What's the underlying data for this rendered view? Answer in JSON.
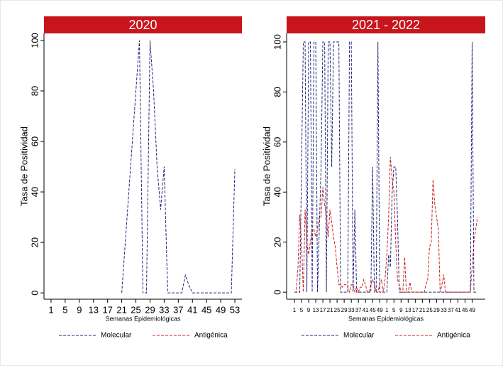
{
  "chart_data": [
    {
      "type": "line",
      "title": "2020",
      "xlabel": "Semanas Epidemiológicas",
      "ylabel": "Tasa de Positividad",
      "x": [
        21,
        22,
        23,
        24,
        25,
        26,
        27,
        28,
        29,
        30,
        31,
        32,
        33,
        34,
        35,
        36,
        37,
        38,
        39,
        40,
        41,
        42,
        43,
        44,
        45,
        46,
        47,
        48,
        49,
        50,
        51,
        52,
        53
      ],
      "xlim": [
        -1,
        55
      ],
      "xticks": [
        1,
        5,
        9,
        13,
        17,
        21,
        25,
        29,
        33,
        37,
        41,
        45,
        49,
        53
      ],
      "ylim": [
        -2.5,
        102.8
      ],
      "yticks": [
        0,
        20,
        40,
        60,
        80,
        100
      ],
      "legend": "bottom",
      "series": [
        {
          "name": "Molecular",
          "color": "#26267f",
          "values": [
            0,
            20,
            40,
            60,
            80,
            100,
            0,
            0,
            100,
            80,
            50,
            33,
            50,
            0,
            0,
            0,
            0,
            0,
            7,
            3,
            0,
            0,
            0,
            0,
            0,
            0,
            0,
            0,
            0,
            0,
            0,
            0,
            49
          ]
        },
        {
          "name": "Antigénica",
          "color": "#cc2222",
          "values": [
            null,
            null,
            null,
            null,
            null,
            null,
            null,
            null,
            null,
            null,
            null,
            null,
            null,
            null,
            null,
            null,
            null,
            null,
            null,
            null,
            null,
            null,
            null,
            null,
            null,
            null,
            null,
            null,
            null,
            null,
            null,
            null,
            null
          ]
        }
      ]
    },
    {
      "type": "line",
      "title": "2021 - 2022",
      "xlabel": "Semanas Epidemiológicas",
      "ylabel": "Tasa de Positividad",
      "categories": [
        "1",
        null,
        null,
        null,
        "5",
        null,
        null,
        null,
        "9",
        null,
        null,
        null,
        "13",
        null,
        null,
        null,
        "17",
        null,
        null,
        null,
        "21",
        null,
        null,
        null,
        "25",
        null,
        null,
        null,
        "29",
        null,
        null,
        null,
        "33",
        null,
        null,
        null,
        "37",
        null,
        null,
        null,
        "41",
        null,
        null,
        null,
        "45",
        null,
        null,
        null,
        "49",
        null,
        null,
        null,
        "1",
        null,
        null,
        null,
        "5",
        null,
        null,
        null,
        "9",
        null,
        null,
        null,
        "13",
        null,
        null,
        null,
        "17",
        null,
        null,
        null,
        "21",
        null,
        null,
        null,
        "25",
        null,
        null,
        null,
        "29",
        null,
        null,
        null,
        "33",
        null,
        null,
        null,
        "37",
        null,
        null,
        null,
        "41",
        null,
        null,
        null,
        "45",
        null,
        null,
        null,
        "49",
        null,
        null,
        null
      ],
      "ylim": [
        -2.8,
        103.4
      ],
      "yticks": [
        0,
        20,
        40,
        60,
        80,
        100
      ],
      "legend": "bottom",
      "series": [
        {
          "name": "Molecular",
          "color": "#26267f",
          "values": [
            0,
            0,
            0,
            0,
            50,
            100,
            100,
            0,
            100,
            100,
            0,
            100,
            100,
            0,
            25,
            50,
            100,
            100,
            0,
            100,
            100,
            50,
            100,
            100,
            100,
            100,
            0,
            0,
            0,
            0,
            0,
            100,
            100,
            0,
            33,
            0,
            0,
            0,
            0,
            0,
            0,
            0,
            0,
            0,
            50,
            0,
            0,
            100,
            0,
            0,
            0,
            0,
            0,
            15,
            10,
            40,
            50,
            50,
            30,
            0,
            0,
            0,
            0,
            0,
            0,
            0,
            0,
            0,
            0,
            0,
            0,
            0,
            0,
            0,
            0,
            0,
            0,
            0,
            0,
            0,
            0,
            0,
            0,
            0,
            0,
            0,
            0,
            0,
            0,
            0,
            0,
            0,
            0,
            0,
            0,
            0,
            0,
            0,
            0,
            0,
            100,
            0,
            0,
            0
          ]
        },
        {
          "name": "Antigénica",
          "color": "#cc2222",
          "values": [
            0,
            0,
            10,
            31,
            20,
            0,
            33,
            20,
            15,
            20,
            25,
            25,
            22,
            25,
            30,
            30,
            42,
            35,
            30,
            22,
            33,
            28,
            22,
            18,
            10,
            3,
            3,
            2,
            3,
            3,
            2,
            0,
            3,
            3,
            0,
            2,
            0,
            2,
            2,
            5,
            3,
            0,
            0,
            3,
            5,
            3,
            0,
            0,
            3,
            5,
            0,
            5,
            15,
            30,
            54,
            45,
            40,
            20,
            5,
            3,
            0,
            0,
            14,
            0,
            0,
            4,
            0,
            0,
            0,
            0,
            0,
            0,
            0,
            0,
            3,
            5,
            18,
            20,
            45,
            35,
            30,
            25,
            0,
            3,
            7,
            0,
            0,
            0,
            0,
            0,
            0,
            0,
            0,
            0,
            0,
            0,
            0,
            0,
            0,
            0,
            10,
            20,
            25,
            30
          ]
        }
      ]
    }
  ]
}
